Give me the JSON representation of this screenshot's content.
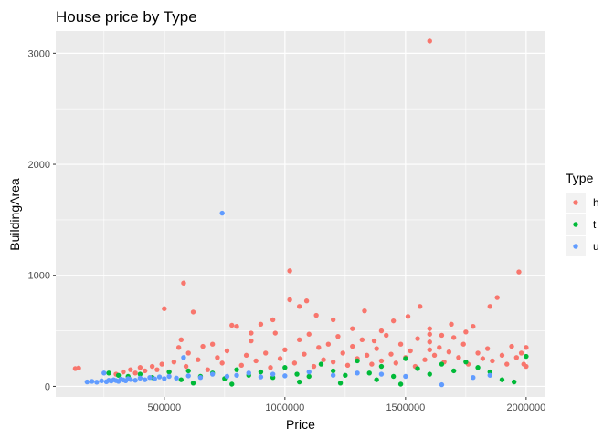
{
  "chart_data": {
    "type": "scatter",
    "title": "House price by Type",
    "xlabel": "Price",
    "ylabel": "BuildingArea",
    "xlim": [
      50000,
      2080000
    ],
    "ylim": [
      -95,
      3200
    ],
    "x_ticks": [
      500000,
      1000000,
      1500000,
      2000000
    ],
    "x_tick_labels": [
      "500000",
      "1000000",
      "1500000",
      "2000000"
    ],
    "y_ticks": [
      0,
      1000,
      2000,
      3000
    ],
    "y_tick_labels": [
      "0",
      "1000",
      "2000",
      "3000"
    ],
    "grid": true,
    "legend": {
      "title": "Type",
      "position": "right"
    },
    "series": [
      {
        "name": "h",
        "color": "#F8766D",
        "points": [
          [
            131000,
            160
          ],
          [
            145000,
            165
          ],
          [
            300000,
            110
          ],
          [
            330000,
            130
          ],
          [
            360000,
            150
          ],
          [
            380000,
            120
          ],
          [
            400000,
            170
          ],
          [
            420000,
            140
          ],
          [
            450000,
            180
          ],
          [
            470000,
            150
          ],
          [
            490000,
            200
          ],
          [
            500000,
            700
          ],
          [
            520000,
            130
          ],
          [
            540000,
            220
          ],
          [
            560000,
            350
          ],
          [
            570000,
            420
          ],
          [
            580000,
            930
          ],
          [
            590000,
            180
          ],
          [
            600000,
            300
          ],
          [
            620000,
            670
          ],
          [
            640000,
            240
          ],
          [
            660000,
            360
          ],
          [
            680000,
            150
          ],
          [
            700000,
            380
          ],
          [
            720000,
            260
          ],
          [
            740000,
            210
          ],
          [
            760000,
            320
          ],
          [
            780000,
            550
          ],
          [
            800000,
            540
          ],
          [
            820000,
            190
          ],
          [
            840000,
            280
          ],
          [
            860000,
            410
          ],
          [
            880000,
            230
          ],
          [
            900000,
            560
          ],
          [
            920000,
            300
          ],
          [
            940000,
            170
          ],
          [
            960000,
            480
          ],
          [
            980000,
            250
          ],
          [
            1000000,
            330
          ],
          [
            1020000,
            1040
          ],
          [
            1040000,
            210
          ],
          [
            1060000,
            420
          ],
          [
            1080000,
            290
          ],
          [
            1100000,
            470
          ],
          [
            1120000,
            180
          ],
          [
            1140000,
            350
          ],
          [
            1160000,
            240
          ],
          [
            1180000,
            380
          ],
          [
            1200000,
            220
          ],
          [
            1220000,
            450
          ],
          [
            1240000,
            300
          ],
          [
            1260000,
            190
          ],
          [
            1280000,
            360
          ],
          [
            1300000,
            250
          ],
          [
            1320000,
            420
          ],
          [
            1340000,
            280
          ],
          [
            1360000,
            200
          ],
          [
            1380000,
            340
          ],
          [
            1400000,
            230
          ],
          [
            1420000,
            460
          ],
          [
            1440000,
            290
          ],
          [
            1460000,
            210
          ],
          [
            1480000,
            380
          ],
          [
            1500000,
            260
          ],
          [
            1520000,
            320
          ],
          [
            1540000,
            180
          ],
          [
            1560000,
            720
          ],
          [
            1580000,
            240
          ],
          [
            1600000,
            3110
          ],
          [
            1600000,
            520
          ],
          [
            1600000,
            470
          ],
          [
            1600000,
            400
          ],
          [
            1600000,
            330
          ],
          [
            1620000,
            280
          ],
          [
            1640000,
            350
          ],
          [
            1660000,
            220
          ],
          [
            1680000,
            310
          ],
          [
            1700000,
            440
          ],
          [
            1720000,
            260
          ],
          [
            1740000,
            380
          ],
          [
            1760000,
            200
          ],
          [
            1780000,
            540
          ],
          [
            1800000,
            300
          ],
          [
            1820000,
            250
          ],
          [
            1840000,
            340
          ],
          [
            1860000,
            230
          ],
          [
            1880000,
            800
          ],
          [
            1900000,
            280
          ],
          [
            1920000,
            200
          ],
          [
            1940000,
            360
          ],
          [
            1960000,
            260
          ],
          [
            1970000,
            1030
          ],
          [
            1980000,
            300
          ],
          [
            1990000,
            200
          ],
          [
            2000000,
            350
          ],
          [
            2000000,
            180
          ],
          [
            1060000,
            720
          ],
          [
            1090000,
            770
          ],
          [
            1020000,
            780
          ],
          [
            950000,
            600
          ],
          [
            860000,
            480
          ],
          [
            1330000,
            680
          ],
          [
            1450000,
            590
          ],
          [
            1510000,
            630
          ],
          [
            1850000,
            720
          ],
          [
            1750000,
            490
          ],
          [
            1690000,
            560
          ],
          [
            1400000,
            500
          ],
          [
            1200000,
            600
          ],
          [
            1130000,
            640
          ],
          [
            1280000,
            520
          ],
          [
            1370000,
            410
          ],
          [
            1550000,
            430
          ],
          [
            1650000,
            460
          ]
        ]
      },
      {
        "name": "t",
        "color": "#00BA38",
        "points": [
          [
            270000,
            120
          ],
          [
            310000,
            100
          ],
          [
            350000,
            90
          ],
          [
            400000,
            110
          ],
          [
            450000,
            80
          ],
          [
            520000,
            130
          ],
          [
            570000,
            60
          ],
          [
            600000,
            140
          ],
          [
            650000,
            90
          ],
          [
            700000,
            120
          ],
          [
            750000,
            70
          ],
          [
            800000,
            150
          ],
          [
            850000,
            100
          ],
          [
            900000,
            130
          ],
          [
            950000,
            80
          ],
          [
            1000000,
            170
          ],
          [
            1050000,
            110
          ],
          [
            1100000,
            90
          ],
          [
            1150000,
            200
          ],
          [
            1200000,
            140
          ],
          [
            1250000,
            100
          ],
          [
            1300000,
            230
          ],
          [
            1350000,
            120
          ],
          [
            1400000,
            180
          ],
          [
            1450000,
            90
          ],
          [
            1500000,
            250
          ],
          [
            1550000,
            160
          ],
          [
            1600000,
            110
          ],
          [
            1650000,
            200
          ],
          [
            1700000,
            140
          ],
          [
            1750000,
            220
          ],
          [
            1800000,
            170
          ],
          [
            1850000,
            130
          ],
          [
            1900000,
            60
          ],
          [
            1950000,
            40
          ],
          [
            2000000,
            270
          ],
          [
            620000,
            30
          ],
          [
            780000,
            20
          ],
          [
            1060000,
            40
          ],
          [
            1230000,
            30
          ],
          [
            1380000,
            60
          ],
          [
            1480000,
            20
          ]
        ]
      },
      {
        "name": "u",
        "color": "#619CFF",
        "points": [
          [
            180000,
            40
          ],
          [
            200000,
            45
          ],
          [
            220000,
            38
          ],
          [
            240000,
            50
          ],
          [
            250000,
            120
          ],
          [
            260000,
            42
          ],
          [
            270000,
            55
          ],
          [
            280000,
            48
          ],
          [
            290000,
            60
          ],
          [
            300000,
            52
          ],
          [
            310000,
            45
          ],
          [
            320000,
            65
          ],
          [
            330000,
            58
          ],
          [
            340000,
            50
          ],
          [
            350000,
            70
          ],
          [
            360000,
            62
          ],
          [
            380000,
            55
          ],
          [
            400000,
            75
          ],
          [
            420000,
            60
          ],
          [
            440000,
            80
          ],
          [
            460000,
            68
          ],
          [
            480000,
            85
          ],
          [
            500000,
            70
          ],
          [
            520000,
            90
          ],
          [
            550000,
            75
          ],
          [
            580000,
            260
          ],
          [
            600000,
            95
          ],
          [
            650000,
            80
          ],
          [
            700000,
            110
          ],
          [
            740000,
            1560
          ],
          [
            760000,
            90
          ],
          [
            800000,
            100
          ],
          [
            850000,
            120
          ],
          [
            900000,
            85
          ],
          [
            950000,
            110
          ],
          [
            1000000,
            95
          ],
          [
            1100000,
            130
          ],
          [
            1200000,
            100
          ],
          [
            1300000,
            120
          ],
          [
            1400000,
            110
          ],
          [
            1500000,
            90
          ],
          [
            1650000,
            15
          ],
          [
            1780000,
            80
          ],
          [
            1850000,
            100
          ]
        ]
      }
    ]
  }
}
